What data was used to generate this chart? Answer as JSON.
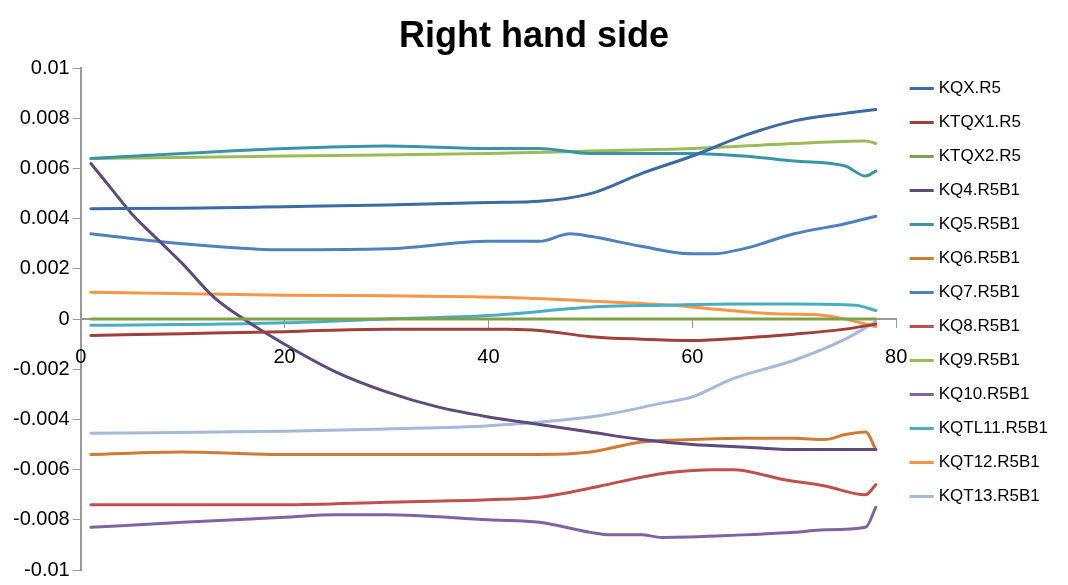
{
  "chart_data": {
    "type": "line",
    "title": "Right hand side",
    "xlim": [
      0,
      80
    ],
    "xticks": [
      0,
      20,
      40,
      60,
      80
    ],
    "ylim": [
      -0.01,
      0.01
    ],
    "yticks": [
      -0.01,
      -0.008,
      -0.006,
      -0.004,
      -0.002,
      0,
      0.002,
      0.004,
      0.006,
      0.008,
      0.01
    ],
    "grid": false,
    "legend": "right",
    "marker": "none",
    "line_style": "solid",
    "series": [
      {
        "name": "KQX.R5",
        "color": "#3d6ba3",
        "x": [
          1,
          10,
          20,
          30,
          40,
          45,
          50,
          55,
          60,
          65,
          70,
          75,
          78
        ],
        "values": [
          0.0044,
          0.00442,
          0.00448,
          0.00455,
          0.00465,
          0.0047,
          0.005,
          0.0058,
          0.0065,
          0.0073,
          0.0079,
          0.0082,
          0.00835
        ]
      },
      {
        "name": "KTQX1.R5",
        "color": "#a0403d",
        "x": [
          1,
          10,
          20,
          30,
          40,
          45,
          50,
          55,
          60,
          65,
          70,
          75,
          78
        ],
        "values": [
          -0.00065,
          -0.00058,
          -0.0005,
          -0.0004,
          -0.0004,
          -0.00045,
          -0.0007,
          -0.0008,
          -0.00085,
          -0.00075,
          -0.0006,
          -0.0004,
          -0.0002
        ]
      },
      {
        "name": "KTQX2.R5",
        "color": "#7f9f48",
        "x": [
          1,
          78
        ],
        "values": [
          0,
          0
        ]
      },
      {
        "name": "KQ4.R5B1",
        "color": "#5f4a7e",
        "x": [
          1,
          3,
          5,
          8,
          10,
          13,
          16,
          20,
          25,
          30,
          35,
          40,
          45,
          50,
          55,
          60,
          65,
          70,
          78
        ],
        "values": [
          0.0062,
          0.0052,
          0.0042,
          0.003,
          0.0022,
          0.0009,
          0,
          -0.001,
          -0.0021,
          -0.0029,
          -0.0035,
          -0.0039,
          -0.0042,
          -0.0045,
          -0.0048,
          -0.005,
          -0.0051,
          -0.0052,
          -0.0052
        ]
      },
      {
        "name": "KQ5.R5B1",
        "color": "#3895a8",
        "x": [
          1,
          10,
          20,
          30,
          40,
          45,
          50,
          55,
          60,
          65,
          70,
          75,
          77,
          78
        ],
        "values": [
          0.0064,
          0.0066,
          0.0068,
          0.0069,
          0.0068,
          0.0068,
          0.0066,
          0.0066,
          0.0066,
          0.0065,
          0.0063,
          0.0061,
          0.0057,
          0.0059
        ]
      },
      {
        "name": "KQ6.R5B1",
        "color": "#d07b35",
        "x": [
          1,
          10,
          20,
          30,
          40,
          45,
          50,
          55,
          60,
          65,
          70,
          73,
          75,
          77,
          78
        ],
        "values": [
          -0.0054,
          -0.0053,
          -0.0054,
          -0.0054,
          -0.0054,
          -0.0054,
          -0.0053,
          -0.0049,
          -0.0048,
          -0.00475,
          -0.00475,
          -0.0048,
          -0.0046,
          -0.0045,
          -0.0052
        ]
      },
      {
        "name": "KQ7.R5B1",
        "color": "#4f81bd",
        "x": [
          1,
          10,
          20,
          30,
          40,
          45,
          48,
          50,
          55,
          60,
          62,
          65,
          70,
          75,
          78
        ],
        "values": [
          0.0034,
          0.003,
          0.00276,
          0.0028,
          0.0031,
          0.0031,
          0.0034,
          0.0033,
          0.0029,
          0.0026,
          0.0026,
          0.0028,
          0.0034,
          0.0038,
          0.0041
        ]
      },
      {
        "name": "KQ8.R5B1",
        "color": "#c0504d",
        "x": [
          1,
          10,
          20,
          30,
          40,
          45,
          51,
          55,
          58,
          62,
          64,
          69,
          73,
          77,
          78
        ],
        "values": [
          -0.0074,
          -0.0074,
          -0.0074,
          -0.0073,
          -0.0072,
          -0.0071,
          -0.00665,
          -0.0063,
          -0.0061,
          -0.006,
          -0.006,
          -0.0064,
          -0.00665,
          -0.007,
          -0.0066
        ]
      },
      {
        "name": "KQ9.R5B1",
        "color": "#9bbb59",
        "x": [
          1,
          20,
          40,
          50,
          60,
          70,
          77,
          78
        ],
        "values": [
          0.0064,
          0.0065,
          0.0066,
          0.0067,
          0.0068,
          0.007,
          0.0071,
          0.007
        ]
      },
      {
        "name": "KQ10.R5B1",
        "color": "#8064a2",
        "x": [
          1,
          10,
          20,
          25,
          30,
          40,
          45,
          50,
          52,
          55,
          57,
          65,
          70,
          73,
          77,
          78
        ],
        "values": [
          -0.0083,
          -0.0081,
          -0.0079,
          -0.0078,
          -0.0078,
          -0.008,
          -0.0081,
          -0.0085,
          -0.0086,
          -0.0086,
          -0.0087,
          -0.0086,
          -0.0085,
          -0.0084,
          -0.0083,
          -0.0075
        ]
      },
      {
        "name": "KQTL11.R5B1",
        "color": "#4bacc6",
        "x": [
          1,
          20,
          30,
          40,
          51,
          57,
          64,
          70,
          76,
          78
        ],
        "values": [
          -0.00025,
          -0.00015,
          0,
          0.00014,
          0.0005,
          0.00055,
          0.0006,
          0.0006,
          0.00055,
          0.00034
        ]
      },
      {
        "name": "KQT12.R5B1",
        "color": "#f79646",
        "x": [
          1,
          20,
          30,
          41,
          51,
          58,
          62,
          69,
          72,
          75,
          78
        ],
        "values": [
          0.00107,
          0.00095,
          0.00093,
          0.00087,
          0.0007,
          0.00055,
          0.0004,
          0.0002,
          0.00018,
          0,
          -0.0003
        ]
      },
      {
        "name": "KQT13.R5B1",
        "color": "#a5b9da",
        "x": [
          1,
          20,
          30,
          40,
          51,
          57,
          60,
          64,
          70,
          75,
          78
        ],
        "values": [
          -0.00455,
          -0.00447,
          -0.00438,
          -0.00425,
          -0.00384,
          -0.00335,
          -0.0031,
          -0.00237,
          -0.00164,
          -0.0008,
          -0.0001
        ]
      }
    ]
  }
}
